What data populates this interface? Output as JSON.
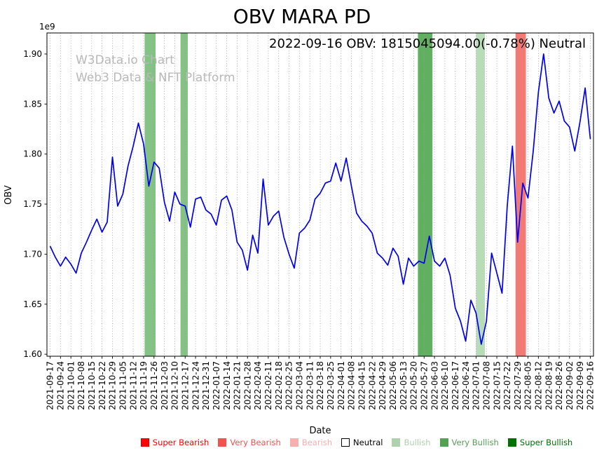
{
  "title": "OBV MARA PD",
  "annotation": "2022-09-16 OBV: 1815045094.00(-0.78%) Neutral",
  "watermark": {
    "line1": "W3Data.io Chart",
    "line2": "Web3 Data & NFT Platform"
  },
  "chart_data": {
    "type": "line",
    "title": "OBV MARA PD",
    "xlabel": "Date",
    "ylabel": "OBV",
    "y_scale_note": "1e9",
    "ylim_1e9": [
      1.598,
      1.921
    ],
    "ytick_labels": [
      "1.60",
      "1.65",
      "1.70",
      "1.75",
      "1.80",
      "1.85",
      "1.90"
    ],
    "grid": "vertical-dotted",
    "x_tick_labels": [
      "2021-09-17",
      "2021-09-24",
      "2021-10-01",
      "2021-10-08",
      "2021-10-15",
      "2021-10-22",
      "2021-10-29",
      "2021-11-05",
      "2021-11-12",
      "2021-11-19",
      "2021-11-26",
      "2021-12-03",
      "2021-12-10",
      "2021-12-17",
      "2021-12-24",
      "2021-12-31",
      "2022-01-07",
      "2022-01-14",
      "2022-01-21",
      "2022-01-28",
      "2022-02-04",
      "2022-02-11",
      "2022-02-18",
      "2022-02-25",
      "2022-03-04",
      "2022-03-11",
      "2022-03-18",
      "2022-03-25",
      "2022-04-01",
      "2022-04-08",
      "2022-04-15",
      "2022-04-22",
      "2022-04-29",
      "2022-05-06",
      "2022-05-13",
      "2022-05-20",
      "2022-05-27",
      "2022-06-03",
      "2022-06-10",
      "2022-06-17",
      "2022-06-24",
      "2022-07-01",
      "2022-07-08",
      "2022-07-15",
      "2022-07-22",
      "2022-07-29",
      "2022-08-05",
      "2022-08-12",
      "2022-08-19",
      "2022-08-26",
      "2022-09-02",
      "2022-09-09",
      "2022-09-16"
    ],
    "series": [
      {
        "name": "OBV",
        "color": "#0000ee",
        "x_step_weeks": 0.5,
        "values_1e9": [
          1.708,
          1.697,
          1.688,
          1.697,
          1.69,
          1.681,
          1.701,
          1.712,
          1.724,
          1.735,
          1.722,
          1.732,
          1.797,
          1.748,
          1.76,
          1.788,
          1.808,
          1.831,
          1.81,
          1.768,
          1.792,
          1.786,
          1.752,
          1.733,
          1.762,
          1.75,
          1.748,
          1.727,
          1.755,
          1.757,
          1.744,
          1.74,
          1.729,
          1.754,
          1.758,
          1.744,
          1.712,
          1.704,
          1.684,
          1.719,
          1.701,
          1.775,
          1.729,
          1.738,
          1.743,
          1.717,
          1.7,
          1.686,
          1.721,
          1.726,
          1.734,
          1.755,
          1.761,
          1.771,
          1.773,
          1.791,
          1.773,
          1.796,
          1.768,
          1.741,
          1.733,
          1.728,
          1.721,
          1.701,
          1.696,
          1.689,
          1.706,
          1.698,
          1.67,
          1.696,
          1.688,
          1.693,
          1.691,
          1.718,
          1.693,
          1.688,
          1.696,
          1.679,
          1.646,
          1.633,
          1.613,
          1.654,
          1.641,
          1.61,
          1.633,
          1.701,
          1.681,
          1.661,
          1.748,
          1.808,
          1.712,
          1.771,
          1.756,
          1.803,
          1.862,
          1.9,
          1.856,
          1.841,
          1.853,
          1.833,
          1.827,
          1.803,
          1.832,
          1.866,
          1.815
        ]
      }
    ],
    "bands": [
      {
        "x0_weeks": 9.1,
        "x1_weeks": 10.15,
        "label": "Very Bullish",
        "color": "rgba(0,128,0,0.48)"
      },
      {
        "x0_weeks": 12.55,
        "x1_weeks": 13.25,
        "label": "Very Bullish",
        "color": "rgba(0,128,0,0.48)"
      },
      {
        "x0_weeks": 35.4,
        "x1_weeks": 36.8,
        "label": "Very Bullish",
        "color": "rgba(0,128,0,0.62)"
      },
      {
        "x0_weeks": 41.0,
        "x1_weeks": 41.85,
        "label": "Bullish",
        "color": "rgba(0,128,0,0.28)"
      },
      {
        "x0_weeks": 44.8,
        "x1_weeks": 45.8,
        "label": "Very Bearish",
        "color": "rgba(239,70,62,0.72)"
      }
    ],
    "legend": [
      {
        "label": "Super Bearish",
        "color": "#ff0000",
        "text_color": "#ff0000",
        "edge": "#dd0000"
      },
      {
        "label": "Very Bearish",
        "color": "#f0534e",
        "text_color": "#f0534e",
        "edge": "#f0534e"
      },
      {
        "label": "Bearish",
        "color": "#f6b0ae",
        "text_color": "#f6b0ae",
        "edge": "#f6b0ae"
      },
      {
        "label": "Neutral",
        "color": "#ffffff",
        "text_color": "#000000",
        "edge": "#000000"
      },
      {
        "label": "Bullish",
        "color": "#aed2ae",
        "text_color": "#aed2ae",
        "edge": "#aed2ae"
      },
      {
        "label": "Very Bullish",
        "color": "#55a055",
        "text_color": "#55a055",
        "edge": "#55a055"
      },
      {
        "label": "Super Bullish",
        "color": "#007000",
        "text_color": "#007000",
        "edge": "#007000"
      }
    ]
  }
}
